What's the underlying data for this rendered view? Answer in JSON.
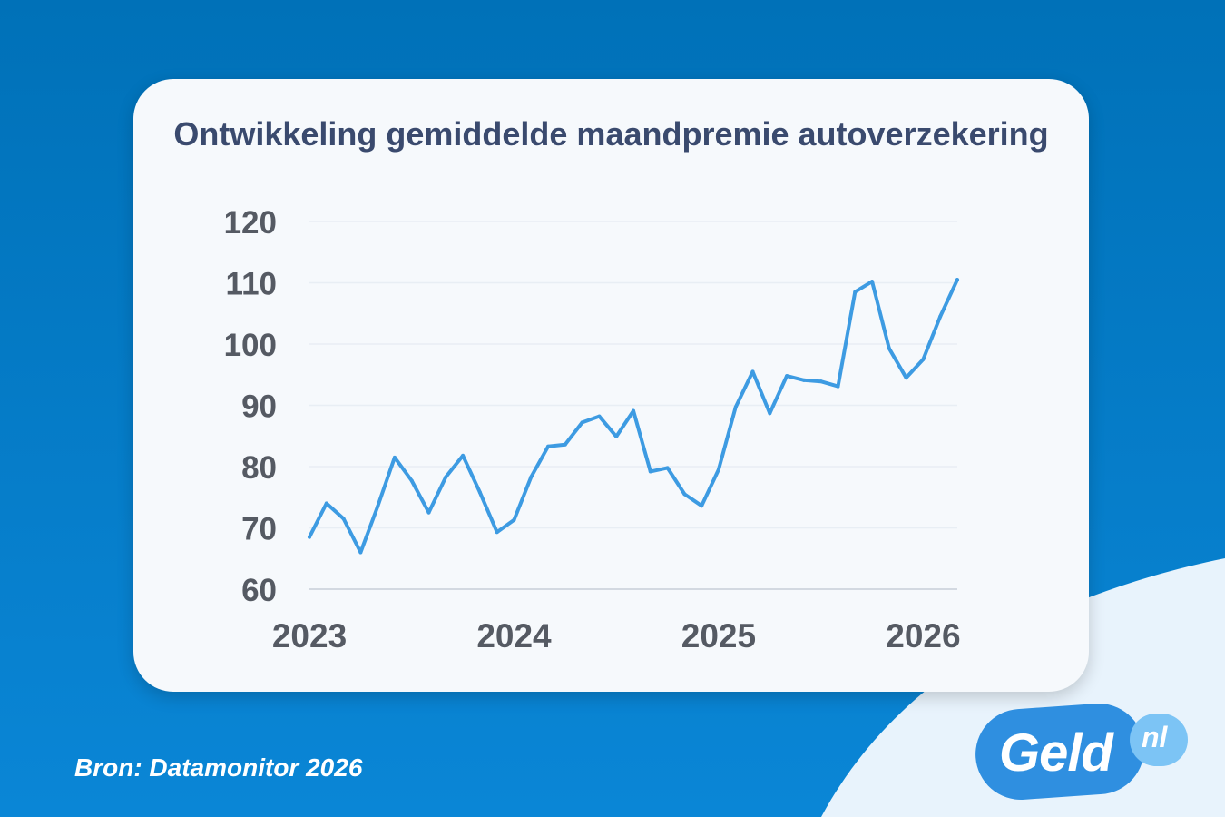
{
  "colors": {
    "background": "#0a7fcc",
    "card": "#f6f9fc",
    "line": "#3d9be2",
    "title": "#3a4a6e",
    "axis_text": "#555a63"
  },
  "source": "Bron: Datamonitor 2026",
  "logo": {
    "text": "Geld",
    "badge": "nl"
  },
  "chart_data": {
    "type": "line",
    "title": "Ontwikkeling gemiddelde maandpremie autoverzekering",
    "xlabel": "",
    "ylabel": "",
    "ylim": [
      60,
      120
    ],
    "yticks": [
      "60",
      "70",
      "80",
      "90",
      "100",
      "110",
      "120"
    ],
    "xlim": [
      "2023-01",
      "2026-03"
    ],
    "xticks": [
      "2023",
      "2024",
      "2025",
      "2026"
    ],
    "grid": true,
    "series": [
      {
        "x": [
          "2023-01",
          "2023-02",
          "2023-03",
          "2023-04",
          "2023-05",
          "2023-06",
          "2023-07",
          "2023-08",
          "2023-09",
          "2023-10",
          "2023-11",
          "2023-12",
          "2024-01",
          "2024-02",
          "2024-03",
          "2024-04",
          "2024-05",
          "2024-06",
          "2024-07",
          "2024-08",
          "2024-09",
          "2024-10",
          "2024-11",
          "2024-12",
          "2025-01",
          "2025-02",
          "2025-03",
          "2025-04",
          "2025-05",
          "2025-06",
          "2025-07",
          "2025-08",
          "2025-09",
          "2025-10",
          "2025-11",
          "2025-12",
          "2026-01",
          "2026-02",
          "2026-03"
        ],
        "values": [
          68.5,
          74,
          71.5,
          66,
          73.5,
          81.5,
          77.7,
          72.5,
          78.3,
          81.8,
          75.8,
          69.3,
          71.3,
          78.3,
          83.3,
          83.6,
          87.2,
          88.2,
          84.9,
          89.1,
          79.2,
          79.8,
          75.5,
          73.6,
          79.5,
          89.7,
          95.5,
          88.7,
          94.8,
          94.1,
          93.9,
          93.1,
          108.5,
          110.2,
          99.3,
          94.5,
          97.5,
          104.5,
          110.5
        ]
      }
    ]
  }
}
